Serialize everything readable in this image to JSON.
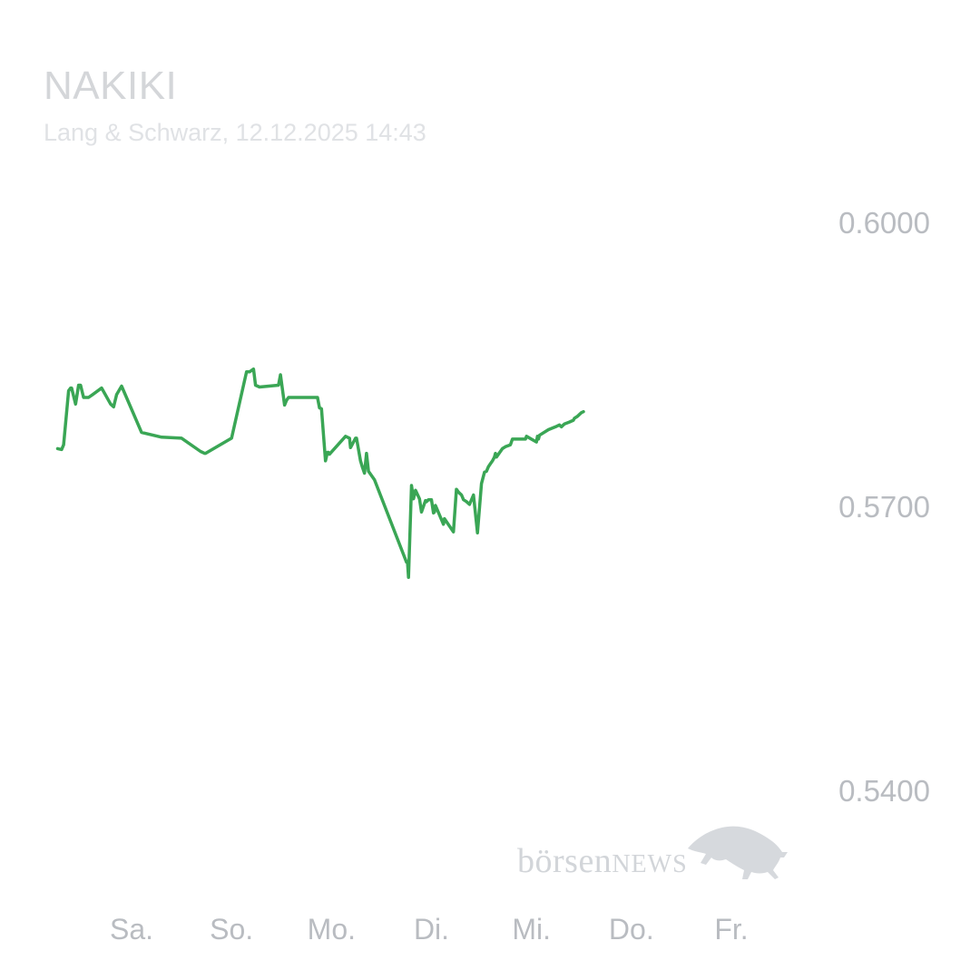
{
  "header": {
    "title": "NAKIKI",
    "subtitle": "Lang & Schwarz, 12.12.2025 14:43"
  },
  "watermark": {
    "brand_main": "börsen",
    "brand_accent": "NEWS",
    "logo_icon": "bull-icon"
  },
  "colors": {
    "line": "#3aa655",
    "axis_text": "#b9bcc1",
    "title_text": "#d4d6d9",
    "watermark": "#d2d5d9"
  },
  "chart_data": {
    "type": "line",
    "title": "NAKIKI",
    "subtitle": "Lang & Schwarz, 12.12.2025 14:43",
    "xlabel": "",
    "ylabel": "",
    "x_tick_labels": [
      "Sa.",
      "So.",
      "Mo.",
      "Di.",
      "Mi.",
      "Do.",
      "Fr."
    ],
    "y_tick_labels": [
      "0.6000",
      "0.5700",
      "0.5400"
    ],
    "y_ticks": [
      0.6,
      0.57,
      0.54
    ],
    "ylim": [
      0.5395,
      0.6105
    ],
    "xlim": [
      -0.75,
      6.45
    ],
    "y_axis_position": "right",
    "grid": false,
    "legend": "none",
    "series": [
      {
        "x": [
          -0.74,
          -0.7,
          -0.68,
          -0.63,
          -0.61,
          -0.6,
          -0.56,
          -0.53,
          -0.51,
          -0.48,
          -0.43,
          -0.39,
          -0.3,
          -0.21,
          -0.18,
          -0.15,
          -0.1,
          0.1,
          0.3,
          0.5,
          0.69,
          0.73,
          0.74,
          1.0,
          1.15,
          1.18,
          1.22,
          1.24,
          1.28,
          1.47,
          1.49,
          1.53,
          1.55,
          1.57,
          1.86,
          1.88,
          1.9,
          1.94,
          1.96,
          1.97,
          1.98,
          2.14,
          2.18,
          2.19,
          2.24,
          2.25,
          2.29,
          2.31,
          2.33,
          2.35,
          2.37,
          2.43,
          2.75,
          2.76,
          2.77,
          2.8,
          2.82,
          2.84,
          2.88,
          2.9,
          2.94,
          2.95,
          2.97,
          3.0,
          3.02,
          3.03,
          3.04,
          3.12,
          3.13,
          3.22,
          3.25,
          3.27,
          3.3,
          3.32,
          3.35,
          3.38,
          3.42,
          3.46,
          3.5,
          3.53,
          3.55,
          3.57,
          3.59,
          3.61,
          3.63,
          3.64,
          3.65,
          3.71,
          3.74,
          3.79,
          3.8,
          3.81,
          3.94,
          3.95,
          4.05,
          4.06,
          4.07,
          4.08,
          4.17,
          4.24,
          4.28,
          4.3,
          4.33,
          4.38,
          4.42,
          4.43,
          4.46,
          4.48,
          4.5,
          4.52
        ],
        "y": [
          0.5761,
          0.576,
          0.5765,
          0.5822,
          0.5825,
          0.5825,
          0.5808,
          0.5828,
          0.5828,
          0.5815,
          0.5815,
          0.5818,
          0.5825,
          0.5808,
          0.5805,
          0.5818,
          0.5827,
          0.5778,
          0.5773,
          0.5772,
          0.5758,
          0.5756,
          0.5756,
          0.5772,
          0.5842,
          0.5842,
          0.5845,
          0.5828,
          0.5826,
          0.5828,
          0.5839,
          0.5807,
          0.5812,
          0.5815,
          0.5815,
          0.5804,
          0.5803,
          0.5748,
          0.5757,
          0.5757,
          0.5755,
          0.5774,
          0.5772,
          0.5762,
          0.5772,
          0.5772,
          0.5748,
          0.5741,
          0.5735,
          0.5756,
          0.5737,
          0.5728,
          0.5641,
          0.5641,
          0.5625,
          0.5722,
          0.5708,
          0.5717,
          0.5708,
          0.5694,
          0.5706,
          0.5705,
          0.5707,
          0.5707,
          0.5693,
          0.5694,
          0.5701,
          0.5681,
          0.5687,
          0.5673,
          0.5718,
          0.5715,
          0.5712,
          0.5707,
          0.5705,
          0.5702,
          0.5712,
          0.5672,
          0.5724,
          0.5736,
          0.5737,
          0.5742,
          0.5745,
          0.5748,
          0.5752,
          0.5756,
          0.5752,
          0.5761,
          0.5763,
          0.5765,
          0.5768,
          0.5771,
          0.5771,
          0.5774,
          0.5768,
          0.5774,
          0.5771,
          0.5775,
          0.5781,
          0.5784,
          0.5786,
          0.5784,
          0.5787,
          0.5789,
          0.5791,
          0.5793,
          0.5795,
          0.5797,
          0.5799,
          0.58
        ]
      }
    ]
  }
}
